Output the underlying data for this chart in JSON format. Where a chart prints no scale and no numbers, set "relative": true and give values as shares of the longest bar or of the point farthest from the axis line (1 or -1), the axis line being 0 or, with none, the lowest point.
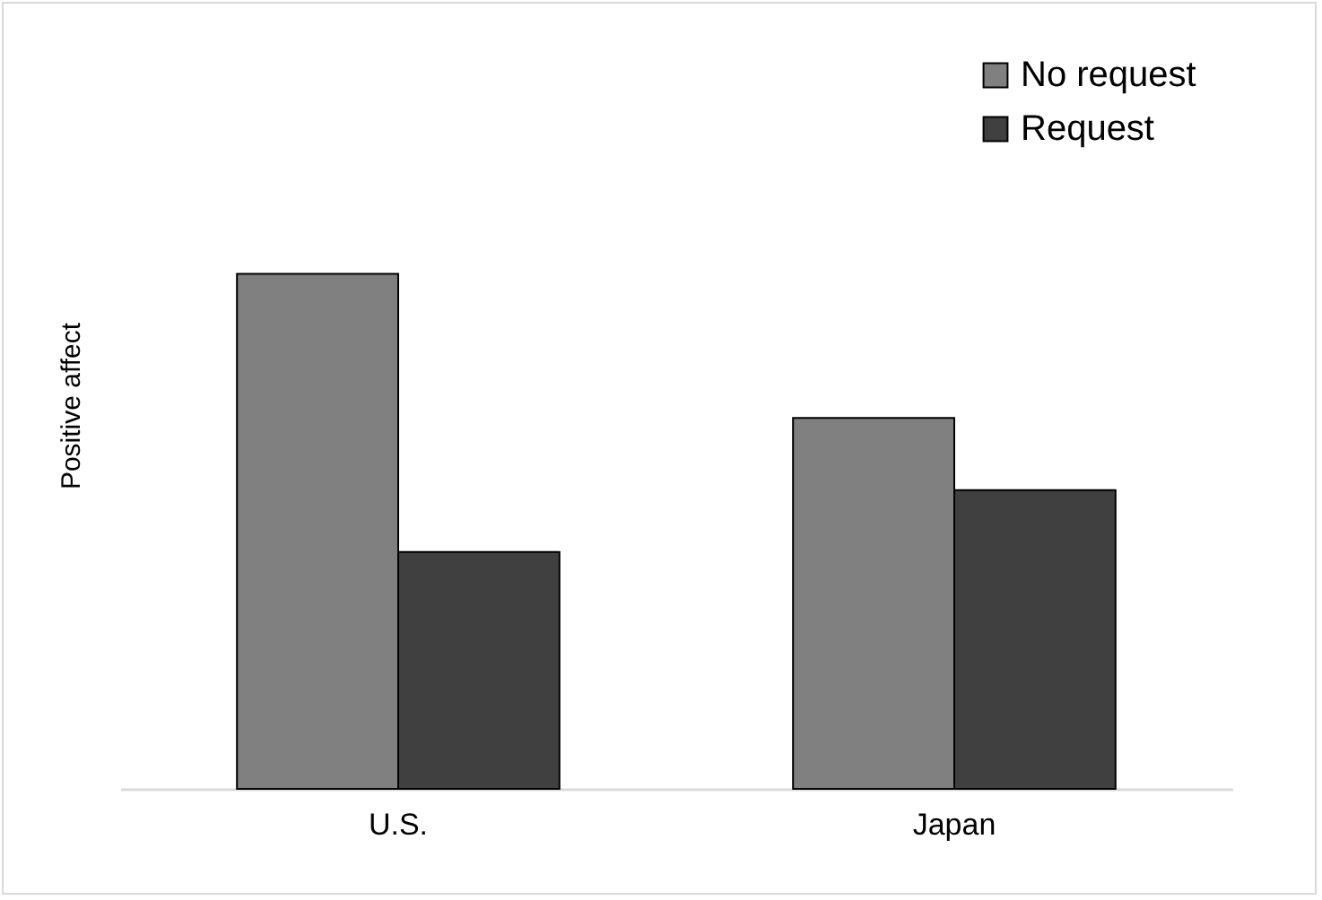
{
  "chart_data": {
    "type": "bar",
    "relative": true,
    "ylabel": "Positive affect",
    "categories": [
      "U.S.",
      "Japan"
    ],
    "series": [
      {
        "name": "No request",
        "color": "#808080",
        "values": [
          1,
          0.72
        ]
      },
      {
        "name": "Request",
        "color": "#404040",
        "values": [
          0.46,
          0.58
        ]
      }
    ],
    "legend": "top right",
    "grid": false
  }
}
